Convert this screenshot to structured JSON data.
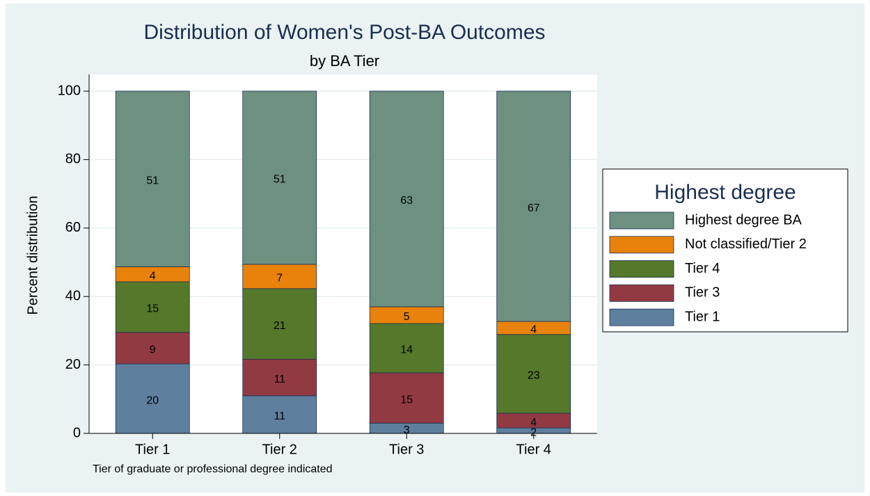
{
  "chart_data": {
    "type": "stacked_bar",
    "title": "Distribution of Women's Post-BA Outcomes",
    "subtitle": "by BA Tier",
    "y_label": "Percent distribution",
    "note": "Tier of graduate or professional degree indicated",
    "legend_title": "Highest degree",
    "legend": "right",
    "grid": true,
    "categories": [
      "Tier 1",
      "Tier 2",
      "Tier 3",
      "Tier 4"
    ],
    "ylim": [
      0,
      100
    ],
    "yticks": [
      0,
      20,
      40,
      60,
      80,
      100
    ],
    "series": [
      {
        "name": "Tier 1",
        "color": "#5f7f9e",
        "values": [
          20.3,
          11.0,
          3.0,
          1.6
        ],
        "value_labels": [
          "20",
          "11",
          "3",
          "2"
        ]
      },
      {
        "name": "Tier 3",
        "color": "#923a42",
        "values": [
          9.2,
          10.7,
          14.7,
          4.3
        ],
        "value_labels": [
          "9",
          "11",
          "15",
          "4"
        ]
      },
      {
        "name": "Tier 4",
        "color": "#55782b",
        "values": [
          14.8,
          20.6,
          14.4,
          23.0
        ],
        "value_labels": [
          "15",
          "21",
          "14",
          "23"
        ]
      },
      {
        "name": "Not classified/Tier 2",
        "color": "#e8820a",
        "values": [
          4.4,
          7.1,
          4.9,
          3.8
        ],
        "value_labels": [
          "4",
          "7",
          "5",
          "4"
        ]
      },
      {
        "name": "Highest degree BA",
        "color": "#6e9081",
        "values": [
          51.3,
          50.6,
          63.0,
          67.3
        ],
        "value_labels": [
          "51",
          "51",
          "63",
          "67"
        ]
      }
    ]
  }
}
